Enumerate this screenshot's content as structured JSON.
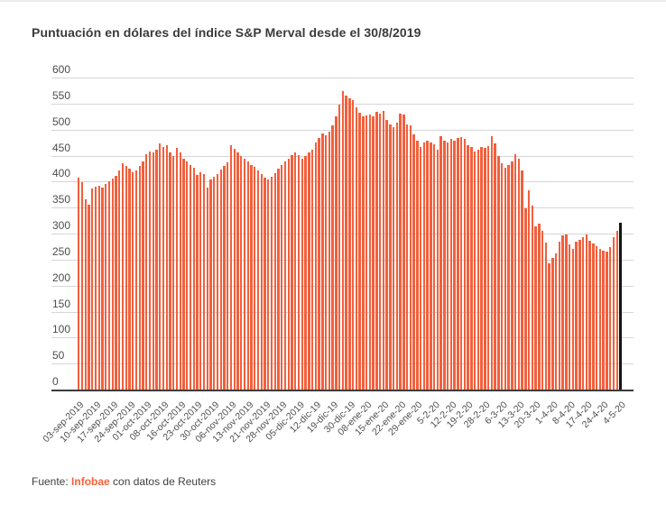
{
  "page": {
    "title": "Puntuación en dólares del índice S&P Merval desde el 30/8/2019",
    "footer": {
      "prefix": "Fuente: ",
      "source": "Infobae",
      "suffix": " con datos de Reuters"
    }
  },
  "chart_data": {
    "type": "bar",
    "title": "Puntuación en dólares del índice S&P Merval desde el 30/8/2019",
    "xlabel": "",
    "ylabel": "",
    "ylim": [
      0,
      600
    ],
    "ytick_step": 50,
    "ytick_labels": [
      "0",
      "50",
      "100",
      "150",
      "200",
      "250",
      "300",
      "350",
      "400",
      "450",
      "500",
      "550",
      "600"
    ],
    "grid": true,
    "bar_color": "#f2603d",
    "highlight_last_bar": true,
    "highlight_color": "#141414",
    "label_every_n_bars": 5,
    "x_tick_labels": [
      "03-sep-2019",
      "10-sep-2019",
      "17-sep-2019",
      "24-sep-2019",
      "01-oct-2019",
      "08-oct-2019",
      "16-oct-2019",
      "23-oct-2019",
      "30-oct-2019",
      "06-nov-2019",
      "13-nov-2019",
      "21-nov-2019",
      "28-nov-2019",
      "05-dic-2019",
      "12-dic-19",
      "19-dic-19",
      "30-dic-19",
      "08-ene-20",
      "15-ene-20",
      "22-ene-20",
      "29-ene-20",
      "5-2-20",
      "12-2-20",
      "19-2-20",
      "28-2-20",
      "6-3-20",
      "13-3-20",
      "20-3-20",
      "1-4-20",
      "8-4-20",
      "17-4-20",
      "24-4-20",
      "4-5-20"
    ],
    "values": [
      410,
      401,
      368,
      358,
      388,
      392,
      394,
      391,
      397,
      402,
      407,
      413,
      424,
      437,
      431,
      427,
      420,
      424,
      432,
      440,
      454,
      460,
      458,
      463,
      475,
      468,
      472,
      458,
      451,
      466,
      458,
      446,
      440,
      434,
      428,
      414,
      420,
      416,
      390,
      406,
      411,
      416,
      425,
      432,
      438,
      472,
      464,
      458,
      451,
      446,
      440,
      434,
      430,
      424,
      417,
      409,
      405,
      411,
      418,
      426,
      433,
      440,
      446,
      452,
      458,
      452,
      446,
      451,
      457,
      463,
      477,
      486,
      494,
      490,
      498,
      510,
      527,
      550,
      575,
      567,
      562,
      558,
      544,
      534,
      527,
      529,
      531,
      527,
      536,
      532,
      538,
      520,
      512,
      506,
      515,
      532,
      530,
      512,
      510,
      492,
      480,
      468,
      477,
      480,
      477,
      473,
      463,
      489,
      480,
      477,
      484,
      480,
      486,
      487,
      484,
      472,
      468,
      460,
      463,
      468,
      466,
      470,
      489,
      475,
      451,
      437,
      428,
      434,
      440,
      454,
      446,
      423,
      350,
      385,
      356,
      316,
      321,
      307,
      284,
      244,
      255,
      264,
      286,
      298,
      300,
      281,
      272,
      286,
      290,
      295,
      300,
      288,
      283,
      278,
      272,
      269,
      267,
      276,
      295,
      307,
      322
    ]
  }
}
